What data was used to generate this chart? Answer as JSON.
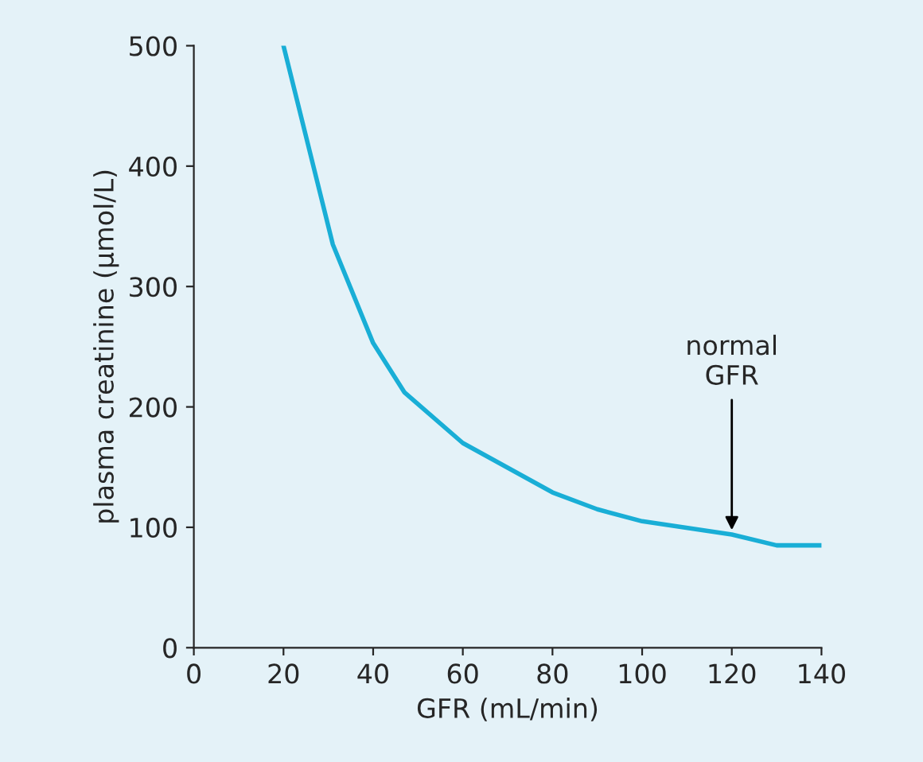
{
  "chart_data": {
    "type": "line",
    "xlabel": "GFR (mL/min)",
    "ylabel": "plasma creatinine (µmol/L)",
    "x": [
      20,
      31,
      40,
      47,
      60,
      80,
      90,
      100,
      120,
      130,
      140
    ],
    "series": [
      {
        "color": "#19aed6",
        "values": [
          500,
          335,
          253,
          212,
          170,
          129,
          115,
          105,
          94,
          85,
          85
        ]
      }
    ],
    "xlim": [
      0,
      140
    ],
    "xticks": [
      0,
      20,
      40,
      60,
      80,
      100,
      120,
      140
    ],
    "ylim": [
      0,
      500
    ],
    "yticks": [
      0,
      100,
      200,
      300,
      400,
      500
    ],
    "grid": false,
    "legend": false,
    "marker": "none",
    "line_style": "solid",
    "annotations": [
      {
        "text": "normal\nGFR",
        "x": 120,
        "y": 94
      }
    ]
  }
}
